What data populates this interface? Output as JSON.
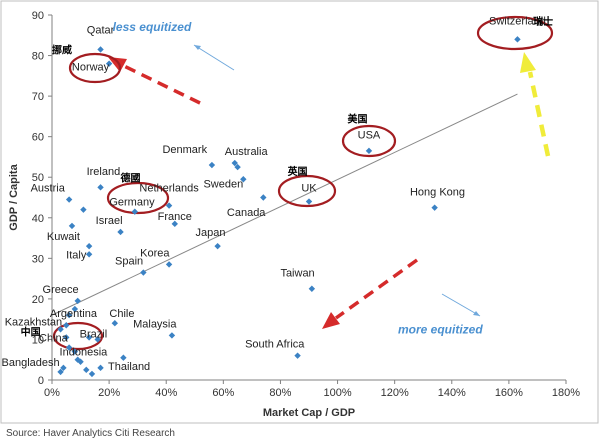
{
  "chart_data": {
    "type": "scatter",
    "title": "",
    "xlabel": "Market Cap / GDP",
    "ylabel": "GDP / Capita",
    "xlim": [
      0,
      180
    ],
    "ylim": [
      0,
      90
    ],
    "x_ticks": [
      "0%",
      "20%",
      "40%",
      "60%",
      "80%",
      "100%",
      "120%",
      "140%",
      "160%",
      "180%"
    ],
    "y_ticks": [
      "0",
      "10",
      "20",
      "30",
      "40",
      "50",
      "60",
      "70",
      "80",
      "90"
    ],
    "grid": false,
    "marker_color": "#3b82c4",
    "trendline": {
      "x": [
        0,
        163
      ],
      "y": [
        16,
        70.5
      ],
      "color": "#888888"
    },
    "points": [
      {
        "label": "Qatar",
        "x": 17,
        "y": 81.5
      },
      {
        "label": "Norway",
        "x": 20,
        "y": 78
      },
      {
        "label": "Switzerland",
        "x": 163,
        "y": 84
      },
      {
        "label": "USA",
        "x": 111,
        "y": 56.5
      },
      {
        "label": "Denmark",
        "x": 56,
        "y": 53
      },
      {
        "label": "Australia",
        "x": 64,
        "y": 53.5
      },
      {
        "label": "Australia2",
        "x": 65,
        "y": 52.5
      },
      {
        "label": "Sweden",
        "x": 67,
        "y": 49.5
      },
      {
        "label": "Canada",
        "x": 74,
        "y": 45
      },
      {
        "label": "UK",
        "x": 90,
        "y": 44
      },
      {
        "label": "Hong Kong",
        "x": 134,
        "y": 42.5
      },
      {
        "label": "Ireland",
        "x": 17,
        "y": 47.5
      },
      {
        "label": "Austria",
        "x": 6,
        "y": 44.5
      },
      {
        "label": "Austria2",
        "x": 11,
        "y": 42
      },
      {
        "label": "Germany",
        "x": 29,
        "y": 41.5
      },
      {
        "label": "Netherlands",
        "x": 41,
        "y": 43
      },
      {
        "label": "France",
        "x": 43,
        "y": 38.5
      },
      {
        "label": "Israel",
        "x": 24,
        "y": 36.5
      },
      {
        "label": "Kuwait",
        "x": 7,
        "y": 38
      },
      {
        "label": "Kuwait2",
        "x": 13,
        "y": 33
      },
      {
        "label": "Italy",
        "x": 13,
        "y": 31
      },
      {
        "label": "Japan",
        "x": 58,
        "y": 33
      },
      {
        "label": "Korea",
        "x": 41,
        "y": 28.5
      },
      {
        "label": "Spain",
        "x": 32,
        "y": 26.5
      },
      {
        "label": "Taiwan",
        "x": 91,
        "y": 22.5
      },
      {
        "label": "Greece",
        "x": 9,
        "y": 19.5
      },
      {
        "label": "Greece2",
        "x": 8,
        "y": 17.5
      },
      {
        "label": "Argentina",
        "x": 6,
        "y": 16
      },
      {
        "label": "Chile",
        "x": 22,
        "y": 14
      },
      {
        "label": "Kazakhstan",
        "x": 3,
        "y": 12.5
      },
      {
        "label": "Kazakhstan2",
        "x": 5,
        "y": 13.5
      },
      {
        "label": "Malaysia",
        "x": 42,
        "y": 11
      },
      {
        "label": "China",
        "x": 5,
        "y": 10.5
      },
      {
        "label": "Brazil",
        "x": 13,
        "y": 10.5
      },
      {
        "label": "Brazil2",
        "x": 16,
        "y": 10
      },
      {
        "label": "Indonesia",
        "x": 8,
        "y": 7
      },
      {
        "label": "Indonesia2",
        "x": 9,
        "y": 5
      },
      {
        "label": "Thailand",
        "x": 25,
        "y": 5.5
      },
      {
        "label": "Bangladesh",
        "x": 4,
        "y": 3
      },
      {
        "label": "Bangladesh2",
        "x": 3,
        "y": 2
      },
      {
        "label": "Bangladesh3",
        "x": 12,
        "y": 2.5
      },
      {
        "label": "Bangladesh4",
        "x": 17,
        "y": 3
      },
      {
        "label": "South Africa",
        "x": 86,
        "y": 6
      },
      {
        "label": "MiscA",
        "x": 10,
        "y": 4.5
      },
      {
        "label": "MiscB",
        "x": 14,
        "y": 1.5
      },
      {
        "label": "MiscC",
        "x": 6,
        "y": 8
      }
    ],
    "labels": [
      {
        "text": "Qatar",
        "x": 17,
        "y": 85.5
      },
      {
        "text": "Norway",
        "x": 13.5,
        "y": 76.3
      },
      {
        "text": "Switzerland",
        "x": 163,
        "y": 87.7
      },
      {
        "text": "USA",
        "x": 111,
        "y": 59.5
      },
      {
        "text": "Denmark",
        "x": 46.5,
        "y": 56
      },
      {
        "text": "Australia",
        "x": 68,
        "y": 55.5
      },
      {
        "text": "Sweden",
        "x": 60,
        "y": 47.5
      },
      {
        "text": "Canada",
        "x": 68,
        "y": 40.5
      },
      {
        "text": "UK",
        "x": 90,
        "y": 46.5
      },
      {
        "text": "Hong Kong",
        "x": 135,
        "y": 45.5
      },
      {
        "text": "Ireland",
        "x": 18,
        "y": 50.5
      },
      {
        "text": "Austria",
        "x": -1.5,
        "y": 46.5
      },
      {
        "text": "Germany",
        "x": 28,
        "y": 43
      },
      {
        "text": "Netherlands",
        "x": 41,
        "y": 46.5
      },
      {
        "text": "France",
        "x": 43,
        "y": 39.5
      },
      {
        "text": "Israel",
        "x": 20,
        "y": 38.5
      },
      {
        "text": "Kuwait",
        "x": 4,
        "y": 34.5
      },
      {
        "text": "Italy",
        "x": 8.5,
        "y": 30
      },
      {
        "text": "Japan",
        "x": 55.5,
        "y": 35.5
      },
      {
        "text": "Korea",
        "x": 36,
        "y": 30.5
      },
      {
        "text": "Spain",
        "x": 27,
        "y": 28.5
      },
      {
        "text": "Taiwan",
        "x": 86,
        "y": 25.5
      },
      {
        "text": "Greece",
        "x": 3,
        "y": 21.5
      },
      {
        "text": "Argentina",
        "x": 7.5,
        "y": 15.5
      },
      {
        "text": "Chile",
        "x": 24.5,
        "y": 15.5
      },
      {
        "text": "Kazakhstan",
        "x": -6.5,
        "y": 13.5
      },
      {
        "text": "Malaysia",
        "x": 36,
        "y": 13
      },
      {
        "text": "China",
        "x": 0.5,
        "y": 9.5
      },
      {
        "text": "Brazil",
        "x": 14.5,
        "y": 10.5
      },
      {
        "text": "Indonesia",
        "x": 11,
        "y": 6
      },
      {
        "text": "Thailand",
        "x": 27,
        "y": 2.5
      },
      {
        "text": "Bangladesh",
        "x": -7.5,
        "y": 3.5
      },
      {
        "text": "South Africa",
        "x": 78,
        "y": 8
      }
    ],
    "cn_labels": [
      {
        "text": "挪威",
        "x": 3.5,
        "y": 80.5
      },
      {
        "text": "瑞士",
        "x": 172,
        "y": 87.5
      },
      {
        "text": "美国",
        "x": 107,
        "y": 63.5
      },
      {
        "text": "英国",
        "x": 86,
        "y": 50.5
      },
      {
        "text": "德國",
        "x": 27.5,
        "y": 49
      },
      {
        "text": "中国",
        "x": -7.5,
        "y": 11
      }
    ],
    "annotations": [
      {
        "text": "less equitized",
        "x": 35,
        "y": 86,
        "color": "#4a90d0"
      },
      {
        "text": "more equitized",
        "x": 136,
        "y": 11.5,
        "color": "#4a90d0"
      }
    ]
  },
  "source_text": "Source: Haver Analytics Citi Research"
}
